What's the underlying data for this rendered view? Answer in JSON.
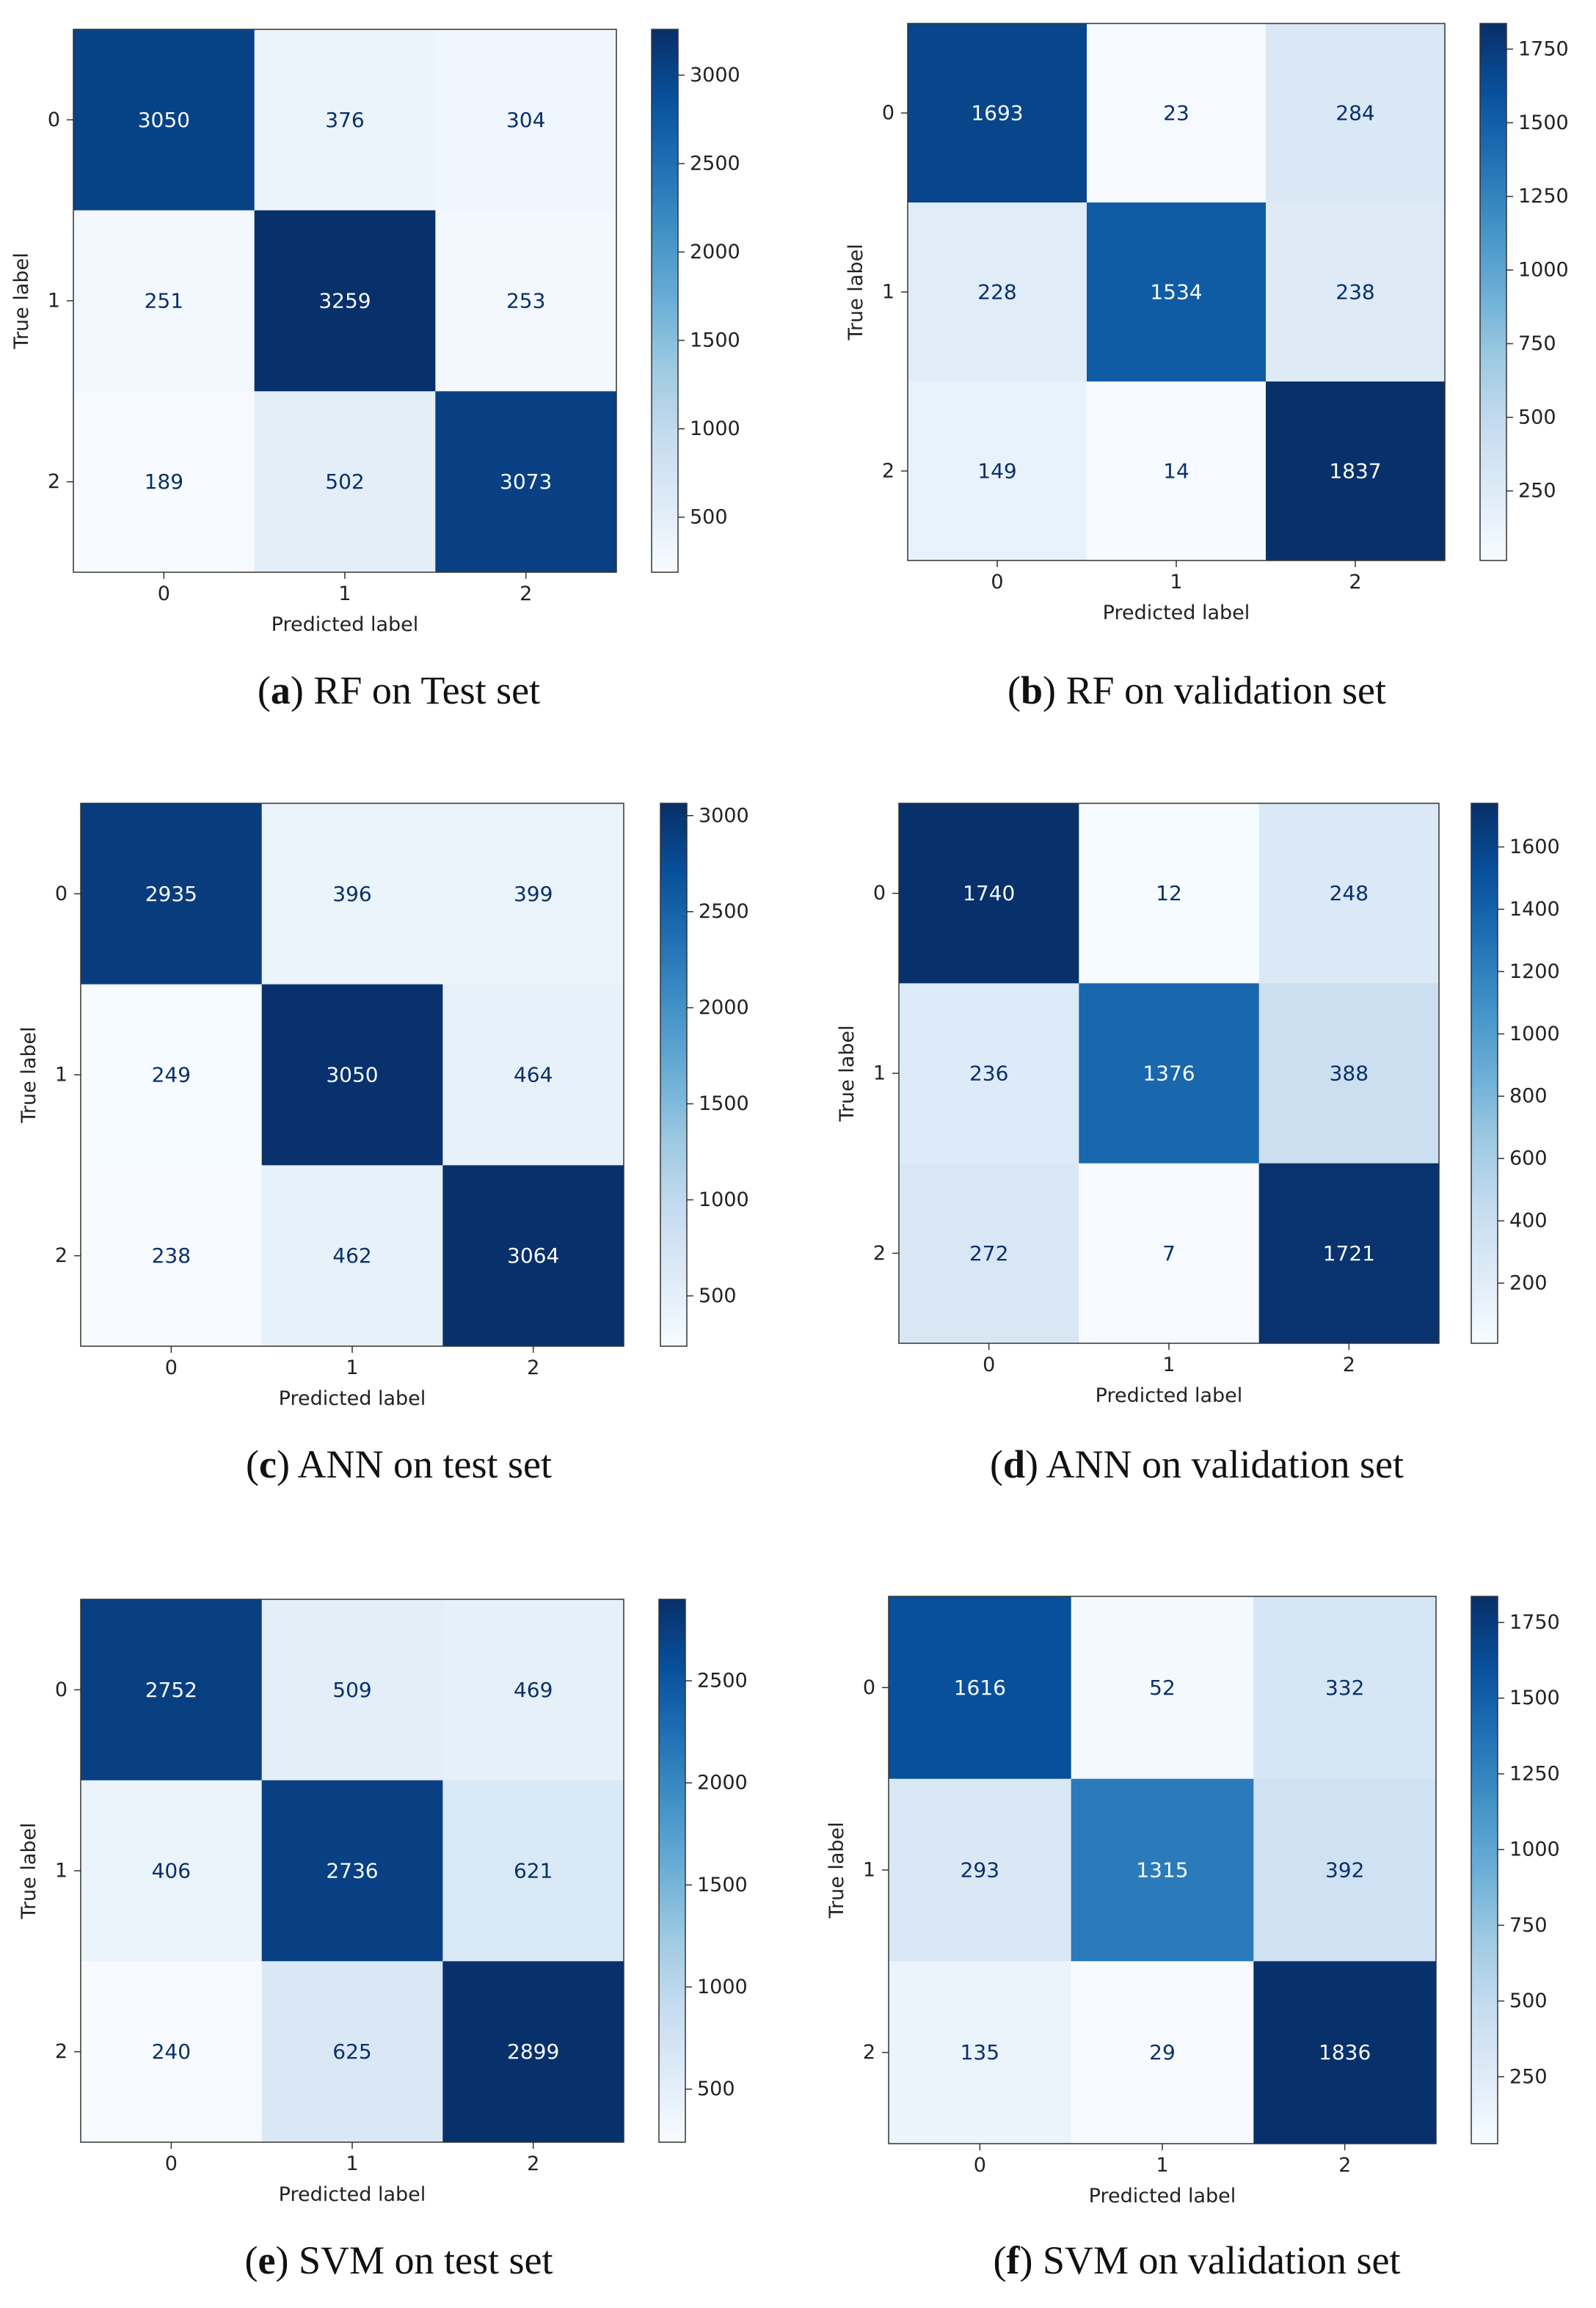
{
  "chart_data": [
    {
      "type": "heatmap",
      "colormap": "Blues",
      "caption_letter": "a",
      "caption_text": "RF on Test set",
      "xlabel": "Predicted label",
      "ylabel": "True label",
      "x_categories": [
        "0",
        "1",
        "2"
      ],
      "y_categories": [
        "0",
        "1",
        "2"
      ],
      "matrix": [
        [
          3050,
          376,
          304
        ],
        [
          251,
          3259,
          253
        ],
        [
          189,
          502,
          3073
        ]
      ],
      "colorbar_ticks": [
        500,
        1000,
        1500,
        2000,
        2500,
        3000
      ]
    },
    {
      "type": "heatmap",
      "colormap": "Blues",
      "caption_letter": "b",
      "caption_text": "RF on validation set",
      "xlabel": "Predicted label",
      "ylabel": "True label",
      "x_categories": [
        "0",
        "1",
        "2"
      ],
      "y_categories": [
        "0",
        "1",
        "2"
      ],
      "matrix": [
        [
          1693,
          23,
          284
        ],
        [
          228,
          1534,
          238
        ],
        [
          149,
          14,
          1837
        ]
      ],
      "colorbar_ticks": [
        250,
        500,
        750,
        1000,
        1250,
        1500,
        1750
      ]
    },
    {
      "type": "heatmap",
      "colormap": "Blues",
      "caption_letter": "c",
      "caption_text": "ANN on test set",
      "xlabel": "Predicted label",
      "ylabel": "True label",
      "x_categories": [
        "0",
        "1",
        "2"
      ],
      "y_categories": [
        "0",
        "1",
        "2"
      ],
      "matrix": [
        [
          2935,
          396,
          399
        ],
        [
          249,
          3050,
          464
        ],
        [
          238,
          462,
          3064
        ]
      ],
      "colorbar_ticks": [
        500,
        1000,
        1500,
        2000,
        2500,
        3000
      ]
    },
    {
      "type": "heatmap",
      "colormap": "Blues",
      "caption_letter": "d",
      "caption_text": "ANN on validation set",
      "xlabel": "Predicted label",
      "ylabel": "True label",
      "x_categories": [
        "0",
        "1",
        "2"
      ],
      "y_categories": [
        "0",
        "1",
        "2"
      ],
      "matrix": [
        [
          1740,
          12,
          248
        ],
        [
          236,
          1376,
          388
        ],
        [
          272,
          7,
          1721
        ]
      ],
      "colorbar_ticks": [
        200,
        400,
        600,
        800,
        1000,
        1200,
        1400,
        1600
      ]
    },
    {
      "type": "heatmap",
      "colormap": "Blues",
      "caption_letter": "e",
      "caption_text": "SVM on test set",
      "xlabel": "Predicted label",
      "ylabel": "True label",
      "x_categories": [
        "0",
        "1",
        "2"
      ],
      "y_categories": [
        "0",
        "1",
        "2"
      ],
      "matrix": [
        [
          2752,
          509,
          469
        ],
        [
          406,
          2736,
          621
        ],
        [
          240,
          625,
          2899
        ]
      ],
      "colorbar_ticks": [
        500,
        1000,
        1500,
        2000,
        2500
      ]
    },
    {
      "type": "heatmap",
      "colormap": "Blues",
      "caption_letter": "f",
      "caption_text": "SVM on validation set",
      "xlabel": "Predicted label",
      "ylabel": "True label",
      "x_categories": [
        "0",
        "1",
        "2"
      ],
      "y_categories": [
        "0",
        "1",
        "2"
      ],
      "matrix": [
        [
          1616,
          52,
          332
        ],
        [
          293,
          1315,
          392
        ],
        [
          135,
          29,
          1836
        ]
      ],
      "colorbar_ticks": [
        250,
        500,
        750,
        1000,
        1250,
        1500,
        1750
      ]
    }
  ]
}
